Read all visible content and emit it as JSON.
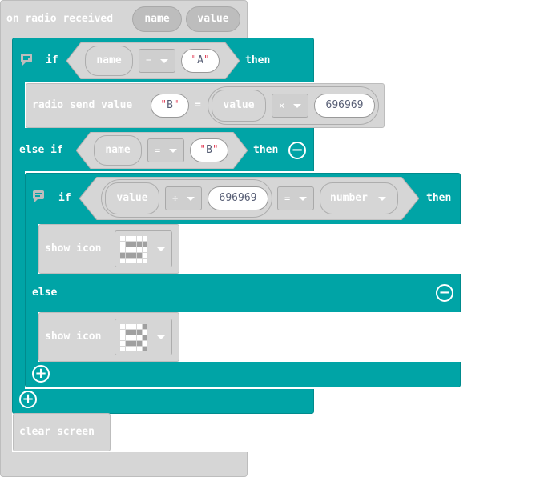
{
  "event_block": {
    "label": "on radio received",
    "params": [
      "name",
      "value"
    ]
  },
  "if_block_1": {
    "if_label": "if",
    "var": "name",
    "op": "=",
    "str": "A",
    "then_label": "then"
  },
  "radio_send": {
    "label": "radio send value",
    "key": "B",
    "eq": "=",
    "var": "value",
    "op": "×",
    "num": "696969"
  },
  "else_if": {
    "label": "else if",
    "var": "name",
    "op": "=",
    "str": "B",
    "then_label": "then"
  },
  "if_block_2": {
    "if_label": "if",
    "var": "value",
    "op1": "÷",
    "num": "696969",
    "op2": "=",
    "rhs": "number",
    "then_label": "then"
  },
  "show_icon_1": {
    "label": "show icon",
    "grid": [
      [
        1,
        1,
        1,
        1,
        1
      ],
      [
        1,
        0,
        0,
        0,
        0
      ],
      [
        1,
        1,
        1,
        1,
        1
      ],
      [
        0,
        0,
        0,
        0,
        1
      ],
      [
        1,
        1,
        1,
        1,
        1
      ]
    ]
  },
  "else_label": "else",
  "show_icon_2": {
    "label": "show icon",
    "grid": [
      [
        1,
        1,
        1,
        1,
        0
      ],
      [
        1,
        0,
        0,
        0,
        1
      ],
      [
        1,
        1,
        1,
        1,
        0
      ],
      [
        1,
        0,
        0,
        0,
        1
      ],
      [
        1,
        1,
        1,
        1,
        0
      ]
    ]
  },
  "clear_screen": {
    "label": "clear screen"
  },
  "colors": {
    "logic": "#00a4a6",
    "radio_var": "#d6d6d6",
    "string_quote": "#e23e57",
    "number_text": "#575e75"
  }
}
